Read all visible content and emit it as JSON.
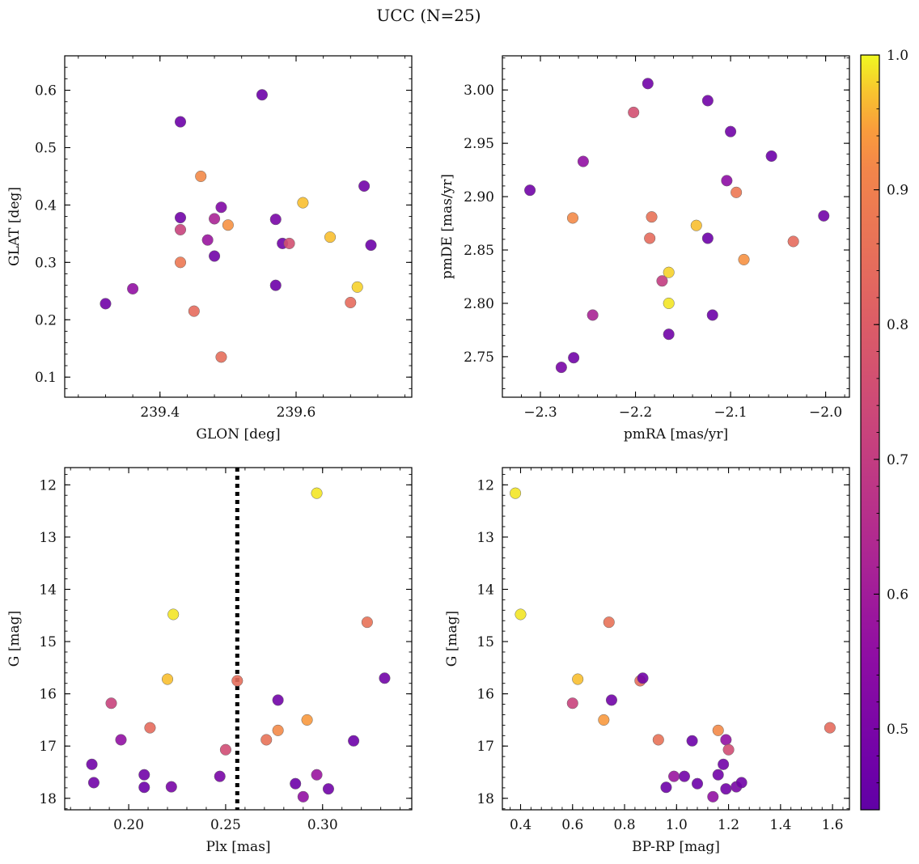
{
  "figure": {
    "title": "UCC (N=25)"
  },
  "colorbar": {
    "min": 0.44,
    "max": 1.0,
    "ticks": [
      0.5,
      0.6,
      0.7,
      0.8,
      0.9,
      1.0
    ],
    "colormap": "plasma"
  },
  "chart_data": [
    {
      "type": "scatter",
      "name": "position",
      "xlabel": "GLON [deg]",
      "ylabel": "GLAT [deg]",
      "xlim": [
        239.26,
        239.77
      ],
      "ylim": [
        0.065,
        0.66
      ],
      "xticks": [
        239.4,
        239.6
      ],
      "yticks": [
        0.1,
        0.2,
        0.3,
        0.4,
        0.5,
        0.6
      ],
      "points": [
        {
          "x": 239.32,
          "y": 0.228,
          "c": 0.48
        },
        {
          "x": 239.36,
          "y": 0.254,
          "c": 0.56
        },
        {
          "x": 239.43,
          "y": 0.545,
          "c": 0.47
        },
        {
          "x": 239.43,
          "y": 0.378,
          "c": 0.48
        },
        {
          "x": 239.43,
          "y": 0.357,
          "c": 0.72
        },
        {
          "x": 239.43,
          "y": 0.3,
          "c": 0.88
        },
        {
          "x": 239.45,
          "y": 0.215,
          "c": 0.84
        },
        {
          "x": 239.46,
          "y": 0.45,
          "c": 0.92
        },
        {
          "x": 239.47,
          "y": 0.339,
          "c": 0.58
        },
        {
          "x": 239.48,
          "y": 0.376,
          "c": 0.62
        },
        {
          "x": 239.48,
          "y": 0.311,
          "c": 0.48
        },
        {
          "x": 239.49,
          "y": 0.396,
          "c": 0.52
        },
        {
          "x": 239.49,
          "y": 0.135,
          "c": 0.85
        },
        {
          "x": 239.5,
          "y": 0.365,
          "c": 0.93
        },
        {
          "x": 239.55,
          "y": 0.592,
          "c": 0.47
        },
        {
          "x": 239.57,
          "y": 0.375,
          "c": 0.5
        },
        {
          "x": 239.57,
          "y": 0.26,
          "c": 0.47
        },
        {
          "x": 239.58,
          "y": 0.333,
          "c": 0.48
        },
        {
          "x": 239.59,
          "y": 0.333,
          "c": 0.76
        },
        {
          "x": 239.61,
          "y": 0.404,
          "c": 0.97
        },
        {
          "x": 239.65,
          "y": 0.344,
          "c": 0.97
        },
        {
          "x": 239.68,
          "y": 0.23,
          "c": 0.84
        },
        {
          "x": 239.69,
          "y": 0.257,
          "c": 0.98
        },
        {
          "x": 239.7,
          "y": 0.433,
          "c": 0.48
        },
        {
          "x": 239.71,
          "y": 0.33,
          "c": 0.47
        }
      ]
    },
    {
      "type": "scatter",
      "name": "proper-motion",
      "xlabel": "pmRA [mas/yr]",
      "ylabel": "pmDE [mas/yr]",
      "xlim": [
        -2.34,
        -1.975
      ],
      "ylim": [
        2.712,
        3.032
      ],
      "xticks": [
        -2.3,
        -2.2,
        -2.1,
        -2.0
      ],
      "yticks": [
        2.75,
        2.8,
        2.85,
        2.9,
        2.95,
        3.0
      ],
      "points": [
        {
          "x": -2.311,
          "y": 2.906,
          "c": 0.48
        },
        {
          "x": -2.278,
          "y": 2.74,
          "c": 0.5
        },
        {
          "x": -2.266,
          "y": 2.88,
          "c": 0.92
        },
        {
          "x": -2.265,
          "y": 2.749,
          "c": 0.48
        },
        {
          "x": -2.255,
          "y": 2.933,
          "c": 0.56
        },
        {
          "x": -2.245,
          "y": 2.789,
          "c": 0.62
        },
        {
          "x": -2.202,
          "y": 2.979,
          "c": 0.76
        },
        {
          "x": -2.187,
          "y": 3.006,
          "c": 0.48
        },
        {
          "x": -2.185,
          "y": 2.861,
          "c": 0.84
        },
        {
          "x": -2.183,
          "y": 2.881,
          "c": 0.86
        },
        {
          "x": -2.172,
          "y": 2.821,
          "c": 0.7
        },
        {
          "x": -2.165,
          "y": 2.829,
          "c": 0.98
        },
        {
          "x": -2.165,
          "y": 2.8,
          "c": 0.99
        },
        {
          "x": -2.165,
          "y": 2.771,
          "c": 0.48
        },
        {
          "x": -2.136,
          "y": 2.873,
          "c": 0.97
        },
        {
          "x": -2.124,
          "y": 2.99,
          "c": 0.48
        },
        {
          "x": -2.124,
          "y": 2.861,
          "c": 0.47
        },
        {
          "x": -2.119,
          "y": 2.789,
          "c": 0.47
        },
        {
          "x": -2.104,
          "y": 2.915,
          "c": 0.55
        },
        {
          "x": -2.1,
          "y": 2.961,
          "c": 0.48
        },
        {
          "x": -2.094,
          "y": 2.904,
          "c": 0.88
        },
        {
          "x": -2.086,
          "y": 2.841,
          "c": 0.93
        },
        {
          "x": -2.057,
          "y": 2.938,
          "c": 0.47
        },
        {
          "x": -2.034,
          "y": 2.858,
          "c": 0.84
        },
        {
          "x": -2.002,
          "y": 2.882,
          "c": 0.48
        }
      ]
    },
    {
      "type": "scatter",
      "name": "parallax-cmd",
      "xlabel": "Plx [mas]",
      "ylabel": "G [mag]",
      "xlim": [
        0.167,
        0.346
      ],
      "ylim": [
        18.22,
        11.67
      ],
      "y_inverted": true,
      "xticks": [
        0.2,
        0.25,
        0.3
      ],
      "yticks": [
        12,
        13,
        14,
        15,
        16,
        17,
        18
      ],
      "vline": 0.256,
      "points": [
        {
          "x": 0.181,
          "y": 17.35,
          "c": 0.48
        },
        {
          "x": 0.182,
          "y": 17.7,
          "c": 0.48
        },
        {
          "x": 0.191,
          "y": 16.18,
          "c": 0.72
        },
        {
          "x": 0.196,
          "y": 16.88,
          "c": 0.56
        },
        {
          "x": 0.208,
          "y": 17.55,
          "c": 0.48
        },
        {
          "x": 0.208,
          "y": 17.79,
          "c": 0.47
        },
        {
          "x": 0.211,
          "y": 16.65,
          "c": 0.84
        },
        {
          "x": 0.22,
          "y": 15.72,
          "c": 0.97
        },
        {
          "x": 0.222,
          "y": 17.78,
          "c": 0.5
        },
        {
          "x": 0.223,
          "y": 14.48,
          "c": 0.99
        },
        {
          "x": 0.247,
          "y": 17.58,
          "c": 0.5
        },
        {
          "x": 0.25,
          "y": 17.07,
          "c": 0.75
        },
        {
          "x": 0.256,
          "y": 15.75,
          "c": 0.85
        },
        {
          "x": 0.271,
          "y": 16.88,
          "c": 0.86
        },
        {
          "x": 0.277,
          "y": 16.7,
          "c": 0.92
        },
        {
          "x": 0.277,
          "y": 16.12,
          "c": 0.48
        },
        {
          "x": 0.286,
          "y": 17.72,
          "c": 0.47
        },
        {
          "x": 0.29,
          "y": 17.97,
          "c": 0.56
        },
        {
          "x": 0.292,
          "y": 16.5,
          "c": 0.94
        },
        {
          "x": 0.297,
          "y": 12.16,
          "c": 0.99
        },
        {
          "x": 0.297,
          "y": 17.55,
          "c": 0.58
        },
        {
          "x": 0.303,
          "y": 17.82,
          "c": 0.48
        },
        {
          "x": 0.316,
          "y": 16.9,
          "c": 0.47
        },
        {
          "x": 0.323,
          "y": 14.63,
          "c": 0.86
        },
        {
          "x": 0.332,
          "y": 15.7,
          "c": 0.48
        }
      ]
    },
    {
      "type": "scatter",
      "name": "color-magnitude",
      "xlabel": "BP-RP [mag]",
      "ylabel": "G [mag]",
      "xlim": [
        0.33,
        1.665
      ],
      "ylim": [
        18.22,
        11.67
      ],
      "y_inverted": true,
      "xticks": [
        0.4,
        0.6,
        0.8,
        1.0,
        1.2,
        1.4,
        1.6
      ],
      "yticks": [
        12,
        13,
        14,
        15,
        16,
        17,
        18
      ],
      "points": [
        {
          "x": 0.38,
          "y": 12.16,
          "c": 0.99
        },
        {
          "x": 0.4,
          "y": 14.48,
          "c": 0.99
        },
        {
          "x": 0.6,
          "y": 16.18,
          "c": 0.72
        },
        {
          "x": 0.62,
          "y": 15.72,
          "c": 0.97
        },
        {
          "x": 0.72,
          "y": 16.5,
          "c": 0.94
        },
        {
          "x": 0.74,
          "y": 14.63,
          "c": 0.86
        },
        {
          "x": 0.75,
          "y": 16.12,
          "c": 0.48
        },
        {
          "x": 0.86,
          "y": 15.75,
          "c": 0.85
        },
        {
          "x": 0.87,
          "y": 15.7,
          "c": 0.48
        },
        {
          "x": 0.93,
          "y": 16.88,
          "c": 0.86
        },
        {
          "x": 0.96,
          "y": 17.79,
          "c": 0.47
        },
        {
          "x": 0.99,
          "y": 17.58,
          "c": 0.58
        },
        {
          "x": 1.03,
          "y": 17.58,
          "c": 0.48
        },
        {
          "x": 1.06,
          "y": 16.9,
          "c": 0.47
        },
        {
          "x": 1.08,
          "y": 17.72,
          "c": 0.47
        },
        {
          "x": 1.14,
          "y": 17.97,
          "c": 0.56
        },
        {
          "x": 1.16,
          "y": 16.7,
          "c": 0.92
        },
        {
          "x": 1.16,
          "y": 17.55,
          "c": 0.48
        },
        {
          "x": 1.18,
          "y": 17.35,
          "c": 0.48
        },
        {
          "x": 1.19,
          "y": 17.82,
          "c": 0.48
        },
        {
          "x": 1.19,
          "y": 16.88,
          "c": 0.56
        },
        {
          "x": 1.2,
          "y": 17.07,
          "c": 0.75
        },
        {
          "x": 1.23,
          "y": 17.78,
          "c": 0.5
        },
        {
          "x": 1.25,
          "y": 17.7,
          "c": 0.48
        },
        {
          "x": 1.59,
          "y": 16.65,
          "c": 0.84
        }
      ]
    }
  ]
}
